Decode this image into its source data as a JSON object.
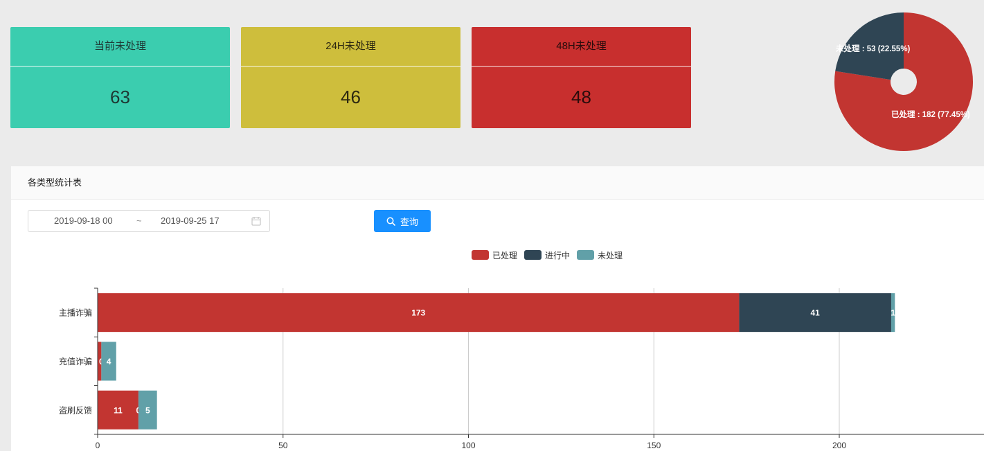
{
  "cards": [
    {
      "label": "当前未处理",
      "value": "63"
    },
    {
      "label": "24H未处理",
      "value": "46"
    },
    {
      "label": "48H未处理",
      "value": "48"
    }
  ],
  "pie_chart": {
    "type": "pie",
    "slices": [
      {
        "name": "已处理",
        "value": 182,
        "label": "已处理 : 182 (77.45%)",
        "color": "#c23531"
      },
      {
        "name": "未处理",
        "value": 53,
        "label": "未处理 : 53 (22.55%)",
        "color": "#2f4554"
      }
    ]
  },
  "panel": {
    "title": "各类型统计表",
    "date_start": "2019-09-18 00",
    "date_separator": "~",
    "date_end": "2019-09-25 17",
    "search_label": "查询"
  },
  "chart_data": {
    "type": "bar",
    "orientation": "horizontal",
    "stacked": true,
    "categories": [
      "主播诈骗",
      "充值诈骗",
      "盗刷反馈"
    ],
    "series": [
      {
        "name": "已处理",
        "values": [
          173,
          1,
          11
        ],
        "labels": [
          "173",
          "",
          "11"
        ],
        "color": "#c23531"
      },
      {
        "name": "进行中",
        "values": [
          41,
          0,
          0
        ],
        "labels": [
          "41",
          "0",
          "0"
        ],
        "color": "#2f4554"
      },
      {
        "name": "未处理",
        "values": [
          1,
          4,
          5
        ],
        "labels": [
          "1",
          "4",
          "5"
        ],
        "color": "#61a0a8"
      }
    ],
    "xticks": [
      "0",
      "50",
      "100",
      "150",
      "200"
    ],
    "xlim": [
      0,
      250
    ],
    "legend": "top-center",
    "grid": true
  }
}
